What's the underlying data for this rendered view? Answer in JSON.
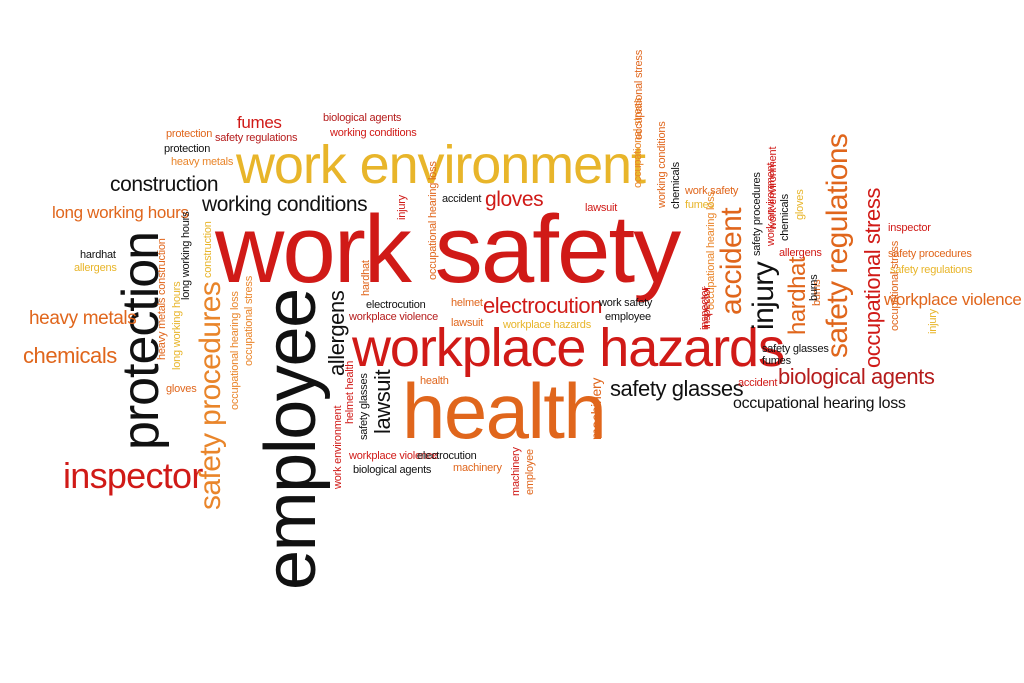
{
  "words": [
    {
      "text": "work safety",
      "color": "#d01a17"
    },
    {
      "text": "work environment",
      "color": "#e8b52a"
    },
    {
      "text": "workplace hazards",
      "color": "#d01a17"
    },
    {
      "text": "health",
      "color": "#e0661c"
    },
    {
      "text": "employee",
      "color": "#111111"
    },
    {
      "text": "protection",
      "color": "#111111"
    },
    {
      "text": "inspector",
      "color": "#d01a17"
    },
    {
      "text": "safety procedures",
      "color": "#e9852a"
    },
    {
      "text": "chemicals",
      "color": "#e0661c"
    },
    {
      "text": "heavy metals",
      "color": "#e0661c"
    },
    {
      "text": "long working hours",
      "color": "#e0661c"
    },
    {
      "text": "construction",
      "color": "#111111"
    },
    {
      "text": "working conditions",
      "color": "#111111"
    },
    {
      "text": "fumes",
      "color": "#d01a17"
    },
    {
      "text": "biological agents",
      "color": "#b51c1c"
    },
    {
      "text": "working conditions",
      "color": "#d01a17"
    },
    {
      "text": "protection",
      "color": "#e0661c"
    },
    {
      "text": "safety regulations",
      "color": "#b51c1c"
    },
    {
      "text": "protection",
      "color": "#111111"
    },
    {
      "text": "heavy metals",
      "color": "#e9852a"
    },
    {
      "text": "hardhat",
      "color": "#111111"
    },
    {
      "text": "allergens",
      "color": "#e8b52a"
    },
    {
      "text": "gloves",
      "color": "#d01a17"
    },
    {
      "text": "accident",
      "color": "#111111"
    },
    {
      "text": "lawsuit",
      "color": "#d01a17"
    },
    {
      "text": "injury",
      "color": "#d01a17"
    },
    {
      "text": "electrocution",
      "color": "#d01a17"
    },
    {
      "text": "helmet",
      "color": "#e0661c"
    },
    {
      "text": "work safety",
      "color": "#111111"
    },
    {
      "text": "employee",
      "color": "#111111"
    },
    {
      "text": "lawsuit",
      "color": "#e0661c"
    },
    {
      "text": "workplace hazards",
      "color": "#e8b52a"
    },
    {
      "text": "electrocution",
      "color": "#111111"
    },
    {
      "text": "workplace violence",
      "color": "#b51c1c"
    },
    {
      "text": "allergens",
      "color": "#111111"
    },
    {
      "text": "hardhat",
      "color": "#e0661c"
    },
    {
      "text": "health",
      "color": "#e0661c"
    },
    {
      "text": "lawsuit",
      "color": "#111111"
    },
    {
      "text": "safety glasses",
      "color": "#111111"
    },
    {
      "text": "helmet health",
      "color": "#d01a17"
    },
    {
      "text": "work environment",
      "color": "#d01a17"
    },
    {
      "text": "workplace violence",
      "color": "#d01a17"
    },
    {
      "text": "electrocution",
      "color": "#111111"
    },
    {
      "text": "biological agents",
      "color": "#111111"
    },
    {
      "text": "machinery",
      "color": "#e0661c"
    },
    {
      "text": "machinery",
      "color": "#d01a17"
    },
    {
      "text": "employee",
      "color": "#e0661c"
    },
    {
      "text": "machinery",
      "color": "#e0661c"
    },
    {
      "text": "safety glasses",
      "color": "#111111"
    },
    {
      "text": "occupational hearing loss",
      "color": "#111111"
    },
    {
      "text": "biological agents",
      "color": "#d01a17"
    },
    {
      "text": "accident",
      "color": "#d01a17"
    },
    {
      "text": "accident",
      "color": "#e0661c"
    },
    {
      "text": "injury",
      "color": "#111111"
    },
    {
      "text": "hardhat",
      "color": "#e0661c"
    },
    {
      "text": "safety regulations",
      "color": "#e0661c"
    },
    {
      "text": "occupational stress",
      "color": "#d01a17"
    },
    {
      "text": "workplace violence",
      "color": "#e0661c"
    },
    {
      "text": "inspector",
      "color": "#d01a17"
    },
    {
      "text": "safety procedures",
      "color": "#e0661c"
    },
    {
      "text": "safety regulations",
      "color": "#e8b52a"
    },
    {
      "text": "injury",
      "color": "#e8b52a"
    },
    {
      "text": "burns",
      "color": "#e0661c"
    },
    {
      "text": "occupational stress",
      "color": "#e0661c"
    },
    {
      "text": "occupational hearing loss",
      "color": "#e9852a"
    },
    {
      "text": "occupational stress",
      "color": "#e9852a"
    },
    {
      "text": "working conditions",
      "color": "#e0661c"
    },
    {
      "text": "chemicals",
      "color": "#111111"
    },
    {
      "text": "work safety",
      "color": "#e0661c"
    },
    {
      "text": "fumes",
      "color": "#e8b52a"
    },
    {
      "text": "safety procedures",
      "color": "#111111"
    },
    {
      "text": "work environment",
      "color": "#d01a17"
    },
    {
      "text": "chemicals",
      "color": "#111111"
    },
    {
      "text": "gloves",
      "color": "#e8b52a"
    },
    {
      "text": "allergens",
      "color": "#d01a17"
    },
    {
      "text": "burns",
      "color": "#111111"
    },
    {
      "text": "inspector",
      "color": "#d01a17"
    },
    {
      "text": "safety glasses",
      "color": "#111111"
    },
    {
      "text": "fumes",
      "color": "#111111"
    },
    {
      "text": "inspector",
      "color": "#d01a17"
    },
    {
      "text": "occupational stress",
      "color": "#e9852a"
    },
    {
      "text": "occupational hearing loss",
      "color": "#e9852a"
    },
    {
      "text": "heavy metals construction",
      "color": "#e0661c"
    },
    {
      "text": "long working hours",
      "color": "#111111"
    },
    {
      "text": "long working hours",
      "color": "#e8b52a"
    },
    {
      "text": "construction",
      "color": "#e8b52a"
    },
    {
      "text": "gloves",
      "color": "#e0661c"
    },
    {
      "text": "occupational hearing loss",
      "color": "#e0661c"
    },
    {
      "text": "occupational stress",
      "color": "#e0661c"
    },
    {
      "text": "work environment",
      "color": "#d01a17"
    }
  ]
}
